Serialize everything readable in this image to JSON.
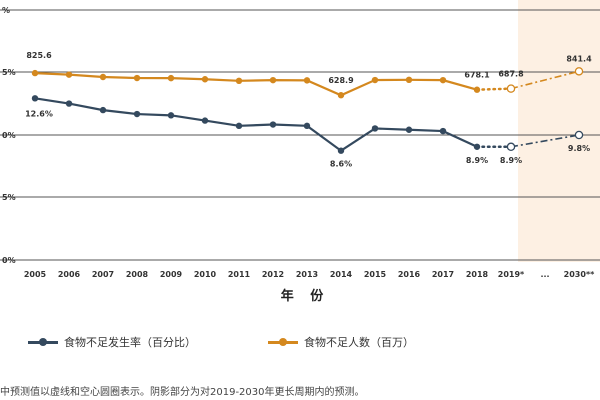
{
  "chart_data": {
    "type": "line",
    "xlabel": "年 份",
    "categories": [
      "2005",
      "2006",
      "2007",
      "2008",
      "2009",
      "2010",
      "2011",
      "2012",
      "2013",
      "2014",
      "2015",
      "2016",
      "2017",
      "2018",
      "2019*",
      "...",
      "2030**"
    ],
    "y_tick_labels": [
      "%",
      "5%",
      "0%",
      "5%",
      "0%"
    ],
    "series": [
      {
        "name": "食物不足发生率（百分比）",
        "color": "#34495e",
        "unit": "percent",
        "values": [
          12.6,
          12.2,
          11.7,
          11.4,
          11.3,
          10.9,
          10.5,
          10.6,
          10.5,
          8.6,
          10.3,
          10.2,
          10.1,
          8.9,
          8.9,
          null,
          9.8
        ],
        "labels": {
          "0": "12.6%",
          "9": "8.6%",
          "13": "8.9%",
          "14": "8.9%",
          "16": "9.8%"
        }
      },
      {
        "name": "食物不足人数（百万）",
        "color": "#d4881e",
        "unit": "millions",
        "values": [
          825.6,
          812,
          791,
          782,
          781,
          771,
          757,
          763,
          761,
          628.9,
          764,
          766,
          763,
          678.1,
          687.8,
          null,
          841.4
        ],
        "labels": {
          "0": "825.6",
          "9": "628.9",
          "13": "678.1",
          "14": "687.8",
          "16": "841.4"
        }
      }
    ],
    "projection_start_index": 14,
    "shaded_categories": [
      "2019*",
      "...",
      "2030**"
    ],
    "grid": true,
    "legend_position": "bottom"
  },
  "legend": {
    "item1": "食物不足发生率（百分比）",
    "item2": "食物不足人数（百万）"
  },
  "footnote": "中预测值以虚线和空心圆圈表示。阴影部分为对2019-2030年更长周期内的预测。"
}
